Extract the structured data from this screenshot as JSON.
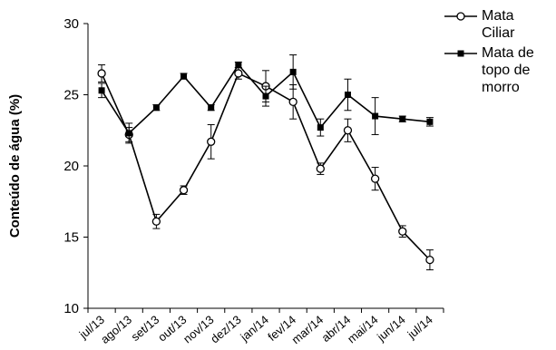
{
  "chart_data": {
    "type": "line",
    "title": "",
    "xlabel": "",
    "ylabel": "Conteúdo de água (%)",
    "ylim": [
      10,
      30
    ],
    "yticks": [
      10,
      15,
      20,
      25,
      30
    ],
    "grid": false,
    "legend_position": "top-right",
    "categories": [
      "jul/13",
      "ago/13",
      "set/13",
      "out/13",
      "nov/13",
      "dez/13",
      "jan/14",
      "fev/14",
      "mar/14",
      "abr/14",
      "mai/14",
      "jun/14",
      "jul/14"
    ],
    "series": [
      {
        "name": "Mata Ciliar",
        "marker": "open-circle",
        "color": "#000000",
        "values": [
          26.5,
          22.2,
          16.1,
          18.3,
          21.7,
          26.5,
          25.6,
          24.5,
          19.8,
          22.5,
          19.1,
          15.4,
          13.4
        ],
        "error": [
          0.6,
          0.5,
          0.5,
          0.3,
          1.2,
          0.4,
          1.1,
          1.2,
          0.4,
          0.8,
          0.8,
          0.4,
          0.7
        ]
      },
      {
        "name": "Mata de topo de morro",
        "marker": "filled-square",
        "color": "#000000",
        "values": [
          25.3,
          22.3,
          24.1,
          26.3,
          24.1,
          27.1,
          24.9,
          26.6,
          22.7,
          25.0,
          23.5,
          23.3,
          23.1
        ],
        "error": [
          0.5,
          0.7,
          0.2,
          0.2,
          0.2,
          0.2,
          0.7,
          1.2,
          0.6,
          1.1,
          1.3,
          0.2,
          0.3
        ]
      }
    ]
  }
}
